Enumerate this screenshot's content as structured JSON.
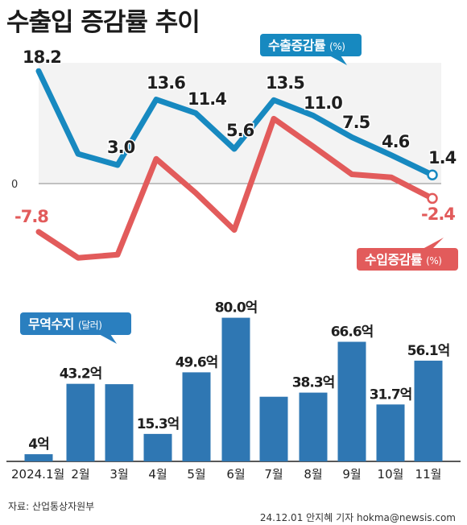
{
  "title": "수출입 증감률 추이",
  "source": "자료: 산업통상자원부",
  "credit": "24.12.01 안지혜 기자 hokma@newsis.com",
  "colors": {
    "export": "#1789c0",
    "import": "#e25b5b",
    "bar": "#2f77b3",
    "label_export": "#1789c0",
    "label_import": "#e25b5b"
  },
  "chart_data": [
    {
      "type": "line",
      "categories": [
        "2024.1월",
        "2월",
        "3월",
        "4월",
        "5월",
        "6월",
        "7월",
        "8월",
        "9월",
        "10월",
        "11월"
      ],
      "series": [
        {
          "name": "수출증감률 (%)",
          "values": [
            18.2,
            4.8,
            3.0,
            13.6,
            11.4,
            5.6,
            13.5,
            11.0,
            7.5,
            4.6,
            1.4
          ],
          "value_labels": [
            "18.2",
            "",
            "3.0",
            "13.6",
            "11.4",
            "5.6",
            "13.5",
            "11.0",
            "7.5",
            "4.6",
            "1.4"
          ]
        },
        {
          "name": "수입증감률 (%)",
          "values": [
            -7.8,
            -12.0,
            -11.5,
            4.0,
            -1.5,
            -7.5,
            10.5,
            6.0,
            1.5,
            1.0,
            -2.4
          ],
          "value_labels": [
            "-7.8",
            "",
            "",
            "",
            "",
            "",
            "",
            "",
            "",
            "",
            "-2.4"
          ]
        }
      ],
      "zero_label": "0"
    },
    {
      "type": "bar",
      "name": "무역수지 (달러)",
      "unit": "억",
      "categories": [
        "2024.1월",
        "2월",
        "3월",
        "4월",
        "5월",
        "6월",
        "7월",
        "8월",
        "9월",
        "10월",
        "11월"
      ],
      "values": [
        4,
        43.2,
        43,
        15.3,
        49.6,
        80.0,
        36,
        38.3,
        66.6,
        31.7,
        56.1
      ],
      "value_labels": [
        "4억",
        "43.2억",
        "",
        "15.3억",
        "49.6억",
        "80.0억",
        "",
        "38.3억",
        "66.6억",
        "31.7억",
        "56.1억"
      ]
    }
  ],
  "legend": {
    "export": {
      "main": "수출증감률",
      "unit": "(%)"
    },
    "import": {
      "main": "수입증감률",
      "unit": "(%)"
    },
    "trade": {
      "main": "무역수지",
      "unit": "(달러)"
    }
  }
}
